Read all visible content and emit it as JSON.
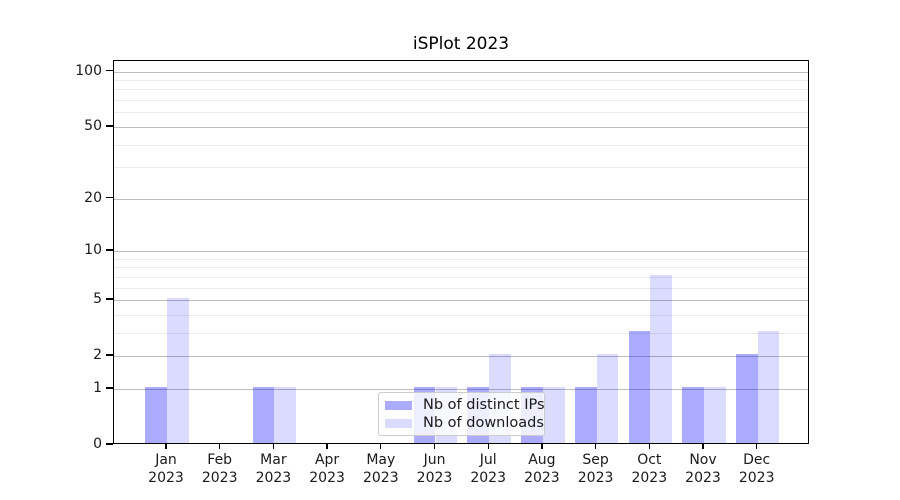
{
  "title": "iSPlot 2023",
  "chart_data": {
    "type": "bar",
    "title": "iSPlot 2023",
    "categories": [
      "Jan 2023",
      "Feb 2023",
      "Mar 2023",
      "Apr 2023",
      "May 2023",
      "Jun 2023",
      "Jul 2023",
      "Aug 2023",
      "Sep 2023",
      "Oct 2023",
      "Nov 2023",
      "Dec 2023"
    ],
    "series": [
      {
        "name": "Nb of distinct IPs",
        "color": "rgba(0,0,255,0.33)",
        "color_hex": "#aaaaff",
        "values": [
          1,
          0,
          1,
          0,
          0,
          1,
          1,
          1,
          1,
          3,
          1,
          2
        ]
      },
      {
        "name": "Nb of downloads",
        "color": "rgba(0,0,255,0.14)",
        "color_hex": "#dbdbff",
        "values": [
          5,
          0,
          1,
          0,
          0,
          1,
          2,
          1,
          2,
          7,
          1,
          3
        ]
      }
    ],
    "xlabel": "",
    "ylabel": "",
    "yscale": "log1p",
    "ylim": [
      0,
      113
    ],
    "y_major_ticks": [
      0,
      1,
      2,
      5,
      10,
      20,
      50,
      100
    ],
    "y_minor_ticks": [
      3,
      4,
      6,
      7,
      8,
      9,
      30,
      40,
      60,
      70,
      80,
      90
    ],
    "grid": "both",
    "legend_position": "lower-center"
  },
  "colors": {
    "grid_major": "#bdbdbd",
    "grid_minor": "#ebebeb",
    "spine": "#000000",
    "background": "#ffffff"
  }
}
